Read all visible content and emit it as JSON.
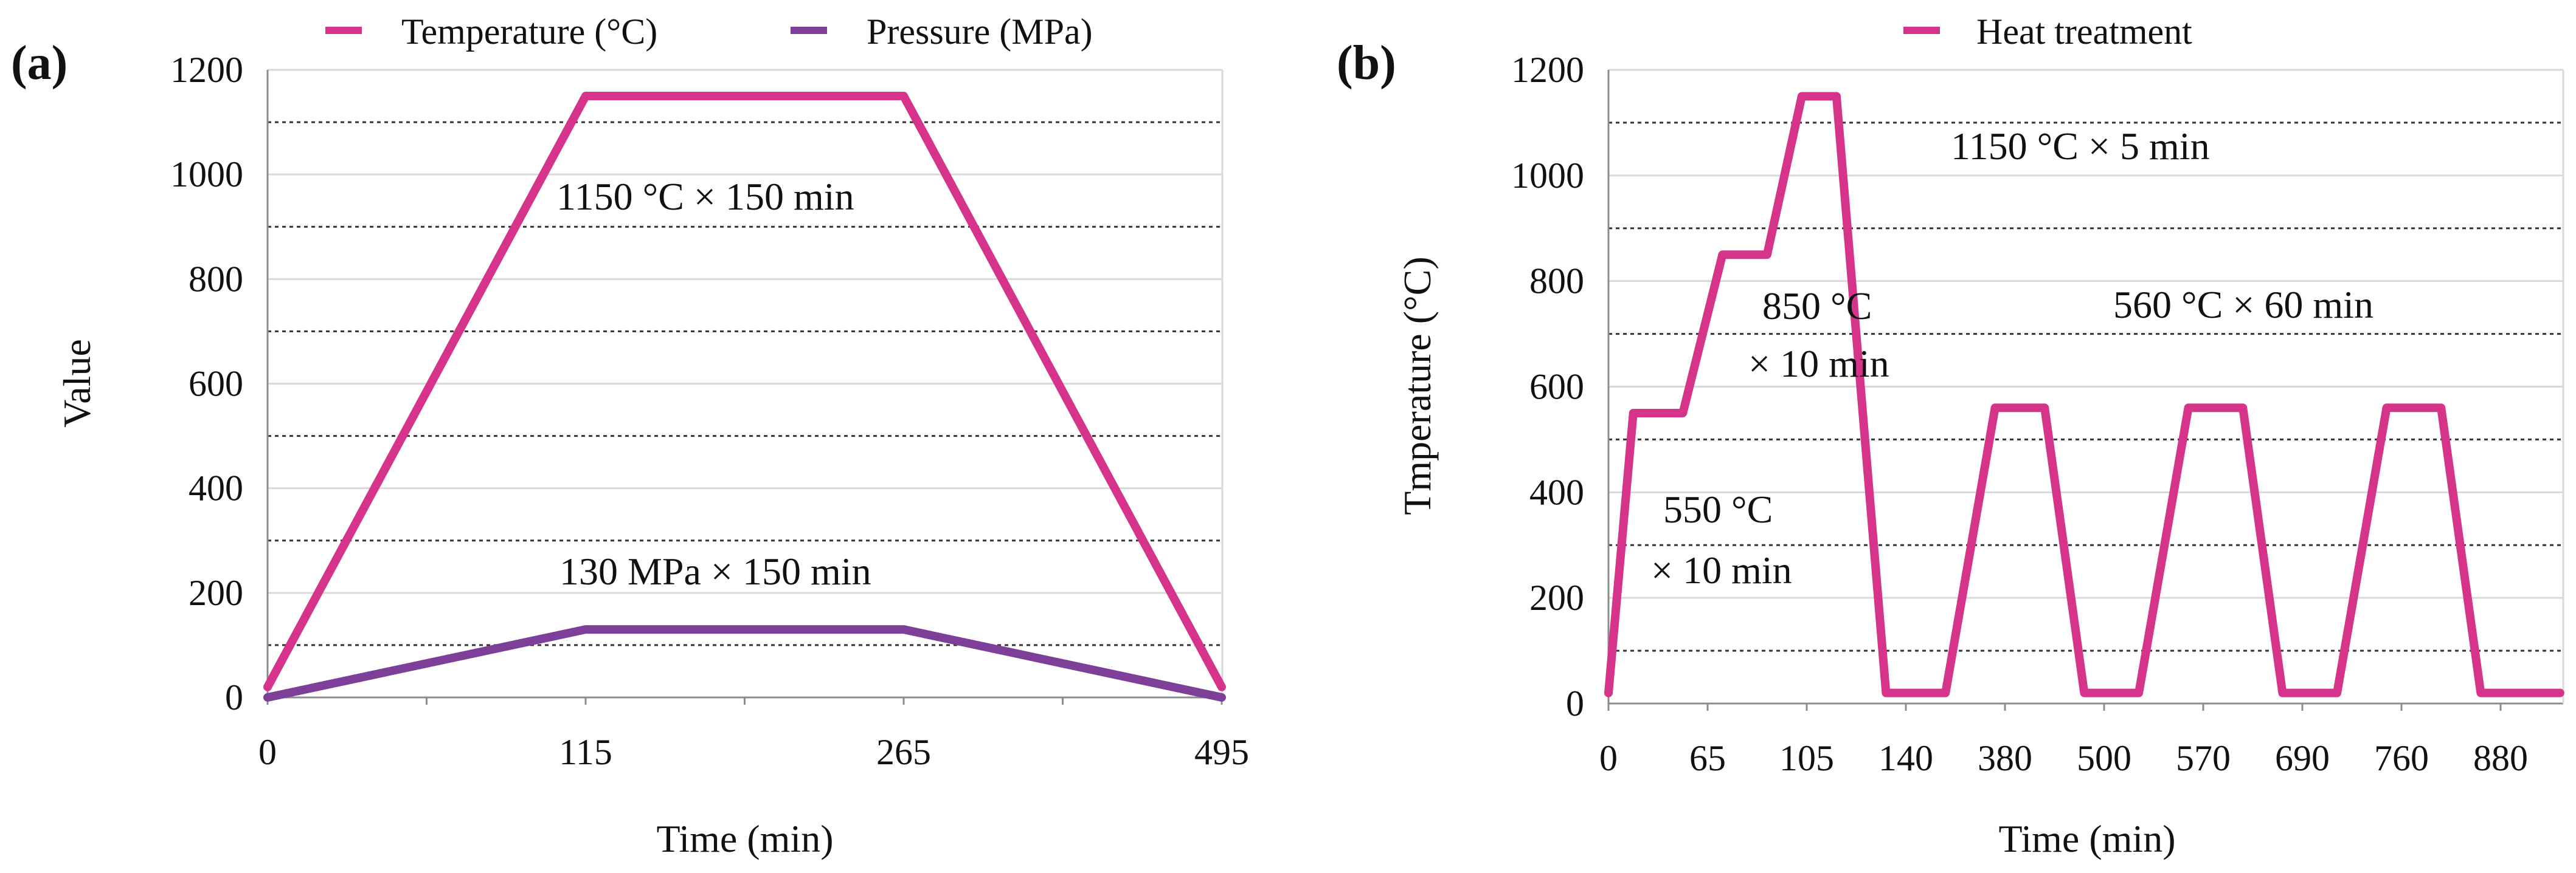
{
  "colors": {
    "temperature": "#D6338A",
    "pressure": "#7E3F98",
    "heat_treatment": "#D6338A",
    "axis": "#8c8c8c",
    "grid_dotted": "#333333",
    "grid_solid": "#d9d9d9"
  },
  "chart_data": [
    {
      "panel_label": "(a)",
      "type": "line",
      "xlabel": "Time (min)",
      "ylabel": "Value",
      "ylim": [
        0,
        1200
      ],
      "yticks": [
        "0",
        "200",
        "400",
        "600",
        "800",
        "1000",
        "1200"
      ],
      "xtick_labels": [
        "0",
        "115",
        "265",
        "495"
      ],
      "x_category_positions": [
        0,
        1,
        2,
        3
      ],
      "dotted_gridlines": [
        100,
        300,
        500,
        700,
        900,
        1100
      ],
      "legend": [
        "Temperature (°C)",
        "Pressure (MPa)"
      ],
      "series": [
        {
          "name": "Temperature (°C)",
          "x": [
            0,
            1,
            2,
            3
          ],
          "values": [
            20,
            1150,
            1150,
            20
          ]
        },
        {
          "name": "Pressure (MPa)",
          "x": [
            0,
            1,
            2,
            3
          ],
          "values": [
            0,
            130,
            130,
            0
          ]
        }
      ],
      "annotations": [
        "1150 °C × 150 min",
        "130 MPa × 150 min"
      ]
    },
    {
      "panel_label": "(b)",
      "type": "line",
      "xlabel": "Time (min)",
      "ylabel": "Tmperature (°C)",
      "ylim": [
        0,
        1200
      ],
      "yticks": [
        "0",
        "200",
        "400",
        "600",
        "800",
        "1000",
        "1200"
      ],
      "xtick_labels": [
        "0",
        "65",
        "105",
        "140",
        "380",
        "500",
        "570",
        "690",
        "760",
        "880"
      ],
      "x_category_positions": [
        0,
        1,
        2,
        3,
        4,
        5,
        6,
        7,
        8,
        9
      ],
      "x_max": 9.6,
      "dotted_gridlines": [
        100,
        300,
        500,
        700,
        900,
        1100
      ],
      "legend": [
        "Heat treatment"
      ],
      "series": [
        {
          "name": "Heat treatment",
          "x": [
            0,
            0.25,
            0.75,
            1.15,
            1.6,
            1.95,
            2.3,
            2.8,
            3.4,
            3.9,
            4.4,
            4.8,
            5.35,
            5.85,
            6.4,
            6.8,
            7.35,
            7.85,
            8.4,
            8.8,
            9.35,
            9.6
          ],
          "values": [
            20,
            550,
            550,
            850,
            850,
            1150,
            1150,
            20,
            20,
            560,
            560,
            20,
            20,
            560,
            560,
            20,
            20,
            560,
            560,
            20,
            20,
            20
          ]
        }
      ],
      "annotations": [
        "1150 °C × 5 min",
        "850 °C",
        "× 10 min",
        "560 °C × 60 min",
        "550 °C",
        "× 10 min"
      ]
    }
  ]
}
